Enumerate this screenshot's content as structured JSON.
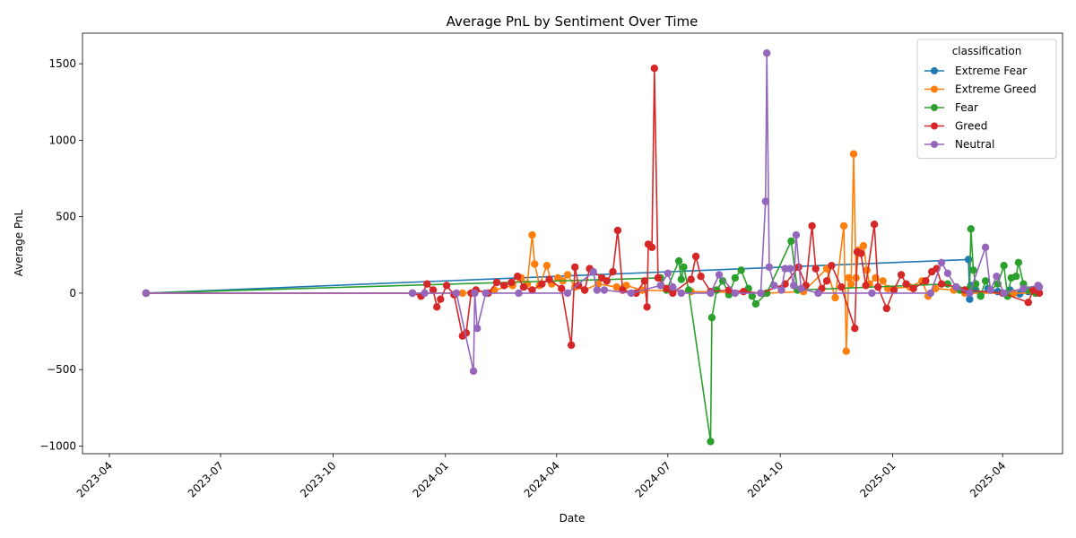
{
  "chart_data": {
    "type": "line",
    "title": "Average PnL by Sentiment Over Time",
    "xlabel": "Date",
    "ylabel": "Average PnL",
    "x_axis_type": "date",
    "xlim": [
      "2023-03-10",
      "2025-05-20"
    ],
    "ylim": [
      -1050,
      1700
    ],
    "x_ticks": [
      "2023-04",
      "2023-07",
      "2023-10",
      "2024-01",
      "2024-04",
      "2024-07",
      "2024-10",
      "2025-01",
      "2025-04"
    ],
    "x_tick_dates": [
      "2023-04-01",
      "2023-07-01",
      "2023-10-01",
      "2024-01-01",
      "2024-04-01",
      "2024-07-01",
      "2024-10-01",
      "2025-01-01",
      "2025-04-01"
    ],
    "y_ticks": [
      -1000,
      -500,
      0,
      500,
      1000,
      1500
    ],
    "y_tick_labels": [
      "−1000",
      "−500",
      "0",
      "500",
      "1000",
      "1500"
    ],
    "grid": false,
    "legend": {
      "title": "classification",
      "position": "top-right"
    },
    "series": [
      {
        "name": "Extreme Fear",
        "color": "#1f77b4",
        "points": [
          [
            "2023-05-01",
            0
          ],
          [
            "2025-03-04",
            220
          ],
          [
            "2025-03-05",
            -40
          ],
          [
            "2025-03-06",
            50
          ],
          [
            "2025-03-10",
            20
          ],
          [
            "2025-03-14",
            -10
          ],
          [
            "2025-03-20",
            30
          ],
          [
            "2025-03-28",
            10
          ],
          [
            "2025-04-07",
            20
          ],
          [
            "2025-04-15",
            -5
          ],
          [
            "2025-04-22",
            10
          ],
          [
            "2025-04-28",
            0
          ]
        ]
      },
      {
        "name": "Extreme Greed",
        "color": "#ff7f0e",
        "points": [
          [
            "2023-05-01",
            0
          ],
          [
            "2023-12-05",
            0
          ],
          [
            "2024-01-15",
            0
          ],
          [
            "2024-02-10",
            20
          ],
          [
            "2024-02-25",
            50
          ],
          [
            "2024-03-03",
            100
          ],
          [
            "2024-03-08",
            60
          ],
          [
            "2024-03-12",
            380
          ],
          [
            "2024-03-14",
            190
          ],
          [
            "2024-03-18",
            50
          ],
          [
            "2024-03-24",
            180
          ],
          [
            "2024-03-28",
            60
          ],
          [
            "2024-04-02",
            100
          ],
          [
            "2024-04-06",
            80
          ],
          [
            "2024-04-10",
            120
          ],
          [
            "2024-04-16",
            40
          ],
          [
            "2024-04-24",
            20
          ],
          [
            "2024-05-05",
            60
          ],
          [
            "2024-05-20",
            40
          ],
          [
            "2024-05-28",
            50
          ],
          [
            "2024-06-10",
            20
          ],
          [
            "2024-07-20",
            10
          ],
          [
            "2024-09-20",
            0
          ],
          [
            "2024-10-20",
            10
          ],
          [
            "2024-11-08",
            160
          ],
          [
            "2024-11-15",
            -30
          ],
          [
            "2024-11-22",
            440
          ],
          [
            "2024-11-24",
            -380
          ],
          [
            "2024-11-26",
            100
          ],
          [
            "2024-11-28",
            60
          ],
          [
            "2024-11-30",
            910
          ],
          [
            "2024-12-02",
            100
          ],
          [
            "2024-12-04",
            280
          ],
          [
            "2024-12-08",
            310
          ],
          [
            "2024-12-11",
            150
          ],
          [
            "2024-12-13",
            60
          ],
          [
            "2024-12-18",
            100
          ],
          [
            "2024-12-24",
            80
          ],
          [
            "2024-12-28",
            30
          ],
          [
            "2025-01-15",
            40
          ],
          [
            "2025-01-25",
            80
          ],
          [
            "2025-01-30",
            -20
          ],
          [
            "2025-02-05",
            30
          ],
          [
            "2025-02-20",
            20
          ],
          [
            "2025-03-01",
            0
          ],
          [
            "2025-04-10",
            0
          ],
          [
            "2025-04-28",
            0
          ]
        ]
      },
      {
        "name": "Fear",
        "color": "#2ca02c",
        "points": [
          [
            "2023-05-01",
            0
          ],
          [
            "2024-06-25",
            100
          ],
          [
            "2024-06-30",
            20
          ],
          [
            "2024-07-10",
            210
          ],
          [
            "2024-07-12",
            90
          ],
          [
            "2024-07-14",
            170
          ],
          [
            "2024-07-18",
            20
          ],
          [
            "2024-08-05",
            -970
          ],
          [
            "2024-08-06",
            -160
          ],
          [
            "2024-08-10",
            20
          ],
          [
            "2024-08-15",
            80
          ],
          [
            "2024-08-20",
            -10
          ],
          [
            "2024-08-25",
            100
          ],
          [
            "2024-08-30",
            150
          ],
          [
            "2024-09-05",
            30
          ],
          [
            "2024-09-08",
            -20
          ],
          [
            "2024-09-11",
            -70
          ],
          [
            "2024-09-20",
            0
          ],
          [
            "2024-10-10",
            340
          ],
          [
            "2024-10-15",
            20
          ],
          [
            "2025-02-15",
            60
          ],
          [
            "2025-02-25",
            20
          ],
          [
            "2025-03-05",
            30
          ],
          [
            "2025-03-06",
            420
          ],
          [
            "2025-03-08",
            150
          ],
          [
            "2025-03-10",
            60
          ],
          [
            "2025-03-14",
            -20
          ],
          [
            "2025-03-18",
            80
          ],
          [
            "2025-03-22",
            20
          ],
          [
            "2025-03-28",
            60
          ],
          [
            "2025-04-02",
            180
          ],
          [
            "2025-04-05",
            -20
          ],
          [
            "2025-04-08",
            100
          ],
          [
            "2025-04-12",
            110
          ],
          [
            "2025-04-14",
            200
          ],
          [
            "2025-04-18",
            60
          ],
          [
            "2025-04-22",
            20
          ],
          [
            "2025-04-28",
            0
          ]
        ]
      },
      {
        "name": "Greed",
        "color": "#d62728",
        "points": [
          [
            "2023-05-01",
            0
          ],
          [
            "2023-12-05",
            0
          ],
          [
            "2023-12-12",
            -20
          ],
          [
            "2023-12-17",
            60
          ],
          [
            "2023-12-22",
            20
          ],
          [
            "2023-12-25",
            -90
          ],
          [
            "2023-12-28",
            -40
          ],
          [
            "2024-01-02",
            50
          ],
          [
            "2024-01-08",
            -10
          ],
          [
            "2024-01-15",
            -280
          ],
          [
            "2024-01-18",
            -260
          ],
          [
            "2024-01-22",
            0
          ],
          [
            "2024-01-26",
            20
          ],
          [
            "2024-02-05",
            0
          ],
          [
            "2024-02-12",
            70
          ],
          [
            "2024-02-18",
            50
          ],
          [
            "2024-02-24",
            70
          ],
          [
            "2024-02-29",
            110
          ],
          [
            "2024-03-05",
            40
          ],
          [
            "2024-03-12",
            20
          ],
          [
            "2024-03-20",
            60
          ],
          [
            "2024-03-26",
            90
          ],
          [
            "2024-04-05",
            30
          ],
          [
            "2024-04-13",
            -340
          ],
          [
            "2024-04-16",
            170
          ],
          [
            "2024-04-19",
            50
          ],
          [
            "2024-04-24",
            20
          ],
          [
            "2024-04-28",
            160
          ],
          [
            "2024-05-08",
            100
          ],
          [
            "2024-05-12",
            80
          ],
          [
            "2024-05-17",
            140
          ],
          [
            "2024-05-21",
            410
          ],
          [
            "2024-05-25",
            20
          ],
          [
            "2024-06-05",
            0
          ],
          [
            "2024-06-12",
            80
          ],
          [
            "2024-06-14",
            -90
          ],
          [
            "2024-06-15",
            320
          ],
          [
            "2024-06-18",
            300
          ],
          [
            "2024-06-20",
            1470
          ],
          [
            "2024-06-23",
            100
          ],
          [
            "2024-06-30",
            30
          ],
          [
            "2024-07-05",
            0
          ],
          [
            "2024-07-20",
            90
          ],
          [
            "2024-07-24",
            240
          ],
          [
            "2024-07-28",
            110
          ],
          [
            "2024-08-05",
            10
          ],
          [
            "2024-08-20",
            20
          ],
          [
            "2024-09-01",
            10
          ],
          [
            "2024-09-15",
            0
          ],
          [
            "2024-10-05",
            60
          ],
          [
            "2024-10-16",
            170
          ],
          [
            "2024-10-22",
            50
          ],
          [
            "2024-10-27",
            440
          ],
          [
            "2024-10-30",
            160
          ],
          [
            "2024-11-04",
            30
          ],
          [
            "2024-11-08",
            80
          ],
          [
            "2024-11-12",
            180
          ],
          [
            "2024-11-20",
            40
          ],
          [
            "2024-12-01",
            -230
          ],
          [
            "2024-12-03",
            270
          ],
          [
            "2024-12-06",
            260
          ],
          [
            "2024-12-10",
            50
          ],
          [
            "2024-12-17",
            450
          ],
          [
            "2024-12-20",
            40
          ],
          [
            "2024-12-27",
            -100
          ],
          [
            "2025-01-02",
            20
          ],
          [
            "2025-01-08",
            120
          ],
          [
            "2025-01-12",
            60
          ],
          [
            "2025-01-18",
            30
          ],
          [
            "2025-01-28",
            80
          ],
          [
            "2025-02-02",
            140
          ],
          [
            "2025-02-06",
            160
          ],
          [
            "2025-02-10",
            60
          ],
          [
            "2025-02-22",
            40
          ],
          [
            "2025-03-01",
            20
          ],
          [
            "2025-04-01",
            0
          ],
          [
            "2025-04-22",
            -60
          ],
          [
            "2025-04-26",
            20
          ],
          [
            "2025-04-30",
            50
          ],
          [
            "2025-05-01",
            0
          ]
        ]
      },
      {
        "name": "Neutral",
        "color": "#9467bd",
        "points": [
          [
            "2023-05-01",
            0
          ],
          [
            "2023-12-05",
            0
          ],
          [
            "2023-12-15",
            0
          ],
          [
            "2024-01-10",
            0
          ],
          [
            "2024-01-24",
            -510
          ],
          [
            "2024-01-25",
            0
          ],
          [
            "2024-01-27",
            -230
          ],
          [
            "2024-02-03",
            0
          ],
          [
            "2024-03-01",
            0
          ],
          [
            "2024-04-10",
            0
          ],
          [
            "2024-05-01",
            140
          ],
          [
            "2024-05-04",
            20
          ],
          [
            "2024-05-10",
            20
          ],
          [
            "2024-06-01",
            0
          ],
          [
            "2024-06-25",
            50
          ],
          [
            "2024-07-01",
            130
          ],
          [
            "2024-07-05",
            40
          ],
          [
            "2024-07-12",
            0
          ],
          [
            "2024-08-05",
            0
          ],
          [
            "2024-08-12",
            120
          ],
          [
            "2024-08-25",
            0
          ],
          [
            "2024-09-15",
            0
          ],
          [
            "2024-09-19",
            600
          ],
          [
            "2024-09-20",
            1570
          ],
          [
            "2024-09-22",
            170
          ],
          [
            "2024-09-26",
            50
          ],
          [
            "2024-10-02",
            20
          ],
          [
            "2024-10-05",
            160
          ],
          [
            "2024-10-09",
            160
          ],
          [
            "2024-10-12",
            50
          ],
          [
            "2024-10-14",
            380
          ],
          [
            "2024-10-18",
            30
          ],
          [
            "2024-11-01",
            0
          ],
          [
            "2024-12-15",
            0
          ],
          [
            "2025-02-01",
            0
          ],
          [
            "2025-02-10",
            200
          ],
          [
            "2025-02-15",
            130
          ],
          [
            "2025-02-22",
            40
          ],
          [
            "2025-03-05",
            0
          ],
          [
            "2025-03-18",
            300
          ],
          [
            "2025-03-22",
            20
          ],
          [
            "2025-03-27",
            110
          ],
          [
            "2025-04-02",
            0
          ],
          [
            "2025-04-18",
            30
          ],
          [
            "2025-04-30",
            50
          ],
          [
            "2025-05-01",
            40
          ]
        ]
      }
    ]
  }
}
